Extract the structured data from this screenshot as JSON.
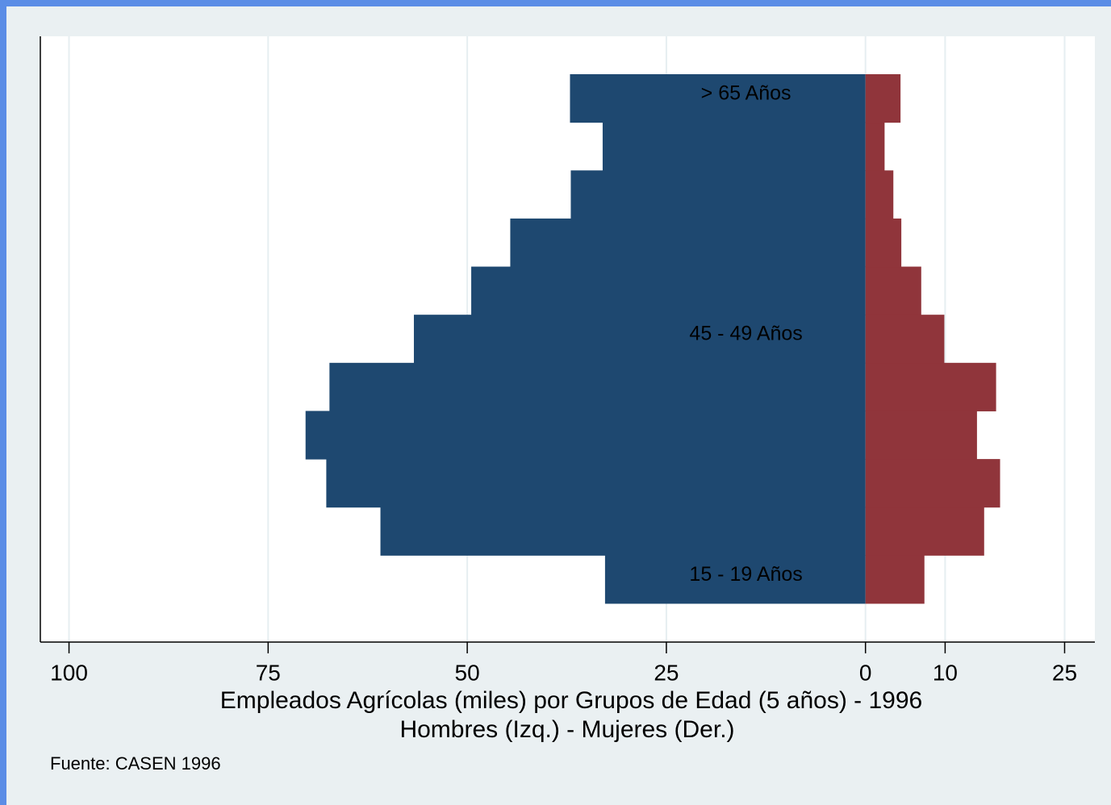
{
  "chart_data": {
    "type": "pyramid",
    "categories": [
      "15 - 19 Años",
      null,
      null,
      null,
      null,
      "45 - 49 Años",
      null,
      null,
      null,
      null,
      "> 65 Años"
    ],
    "series": [
      {
        "color": "#1e4870",
        "values": [
          32.7,
          60.9,
          67.7,
          70.3,
          67.3,
          56.7,
          49.5,
          44.6,
          37.0,
          33.0,
          37.1
        ]
      },
      {
        "color": "#90353b",
        "values": [
          7.4,
          14.9,
          16.9,
          14.0,
          16.4,
          9.9,
          7.0,
          4.5,
          3.5,
          2.4,
          4.4
        ]
      }
    ],
    "xlim": [
      -103.6,
      28.8
    ],
    "xticks": [
      {
        "value": -100,
        "label": "100"
      },
      {
        "value": -75,
        "label": "75"
      },
      {
        "value": -50,
        "label": "50"
      },
      {
        "value": -25,
        "label": "25"
      },
      0,
      10,
      25
    ],
    "grid": true,
    "xlabel": [
      "Empleados Agrícolas (miles) por Grupos de Edad (5 años) - 1996",
      "Hombres (Izq.) - Mujeres (Der.)"
    ],
    "note": "Fuente: CASEN 1996"
  }
}
